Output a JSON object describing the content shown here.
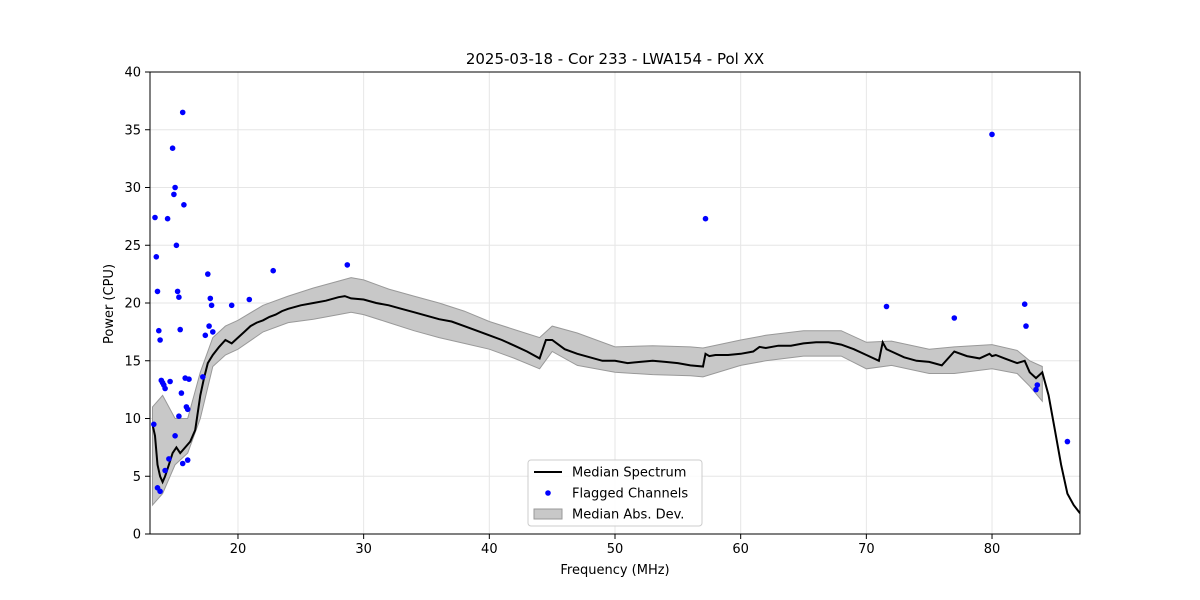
{
  "colors": {
    "median_line": "#000000",
    "flagged_points": "#0000ff",
    "mad_band_fill": "#c8c8c8",
    "mad_band_edge": "#999999",
    "grid": "#e6e6e6",
    "axes": "#000000",
    "background": "#ffffff"
  },
  "chart_data": {
    "type": "line",
    "title": "2025-03-18 - Cor 233 - LWA154 - Pol XX",
    "xlabel": "Frequency (MHz)",
    "ylabel": "Power (CPU)",
    "xlim": [
      13,
      87
    ],
    "ylim": [
      0,
      40
    ],
    "xticks": [
      20,
      30,
      40,
      50,
      60,
      70,
      80
    ],
    "yticks": [
      0,
      5,
      10,
      15,
      20,
      25,
      30,
      35,
      40
    ],
    "grid": true,
    "legend_location": "lower-center",
    "legend": [
      {
        "label": "Median Spectrum",
        "kind": "line"
      },
      {
        "label": "Flagged Channels",
        "kind": "marker"
      },
      {
        "label": "Median Abs. Dev.",
        "kind": "patch"
      }
    ],
    "series": [
      {
        "name": "Median Spectrum",
        "x": [
          13.2,
          13.4,
          13.6,
          13.8,
          14.0,
          14.2,
          14.5,
          14.8,
          15.1,
          15.4,
          15.8,
          16.2,
          16.6,
          17.0,
          17.3,
          17.6,
          18.0,
          18.5,
          19.0,
          19.5,
          20.0,
          20.5,
          21.0,
          21.5,
          22.0,
          22.5,
          23.0,
          23.5,
          24.0,
          25.0,
          26.0,
          27.0,
          28.0,
          28.5,
          29.0,
          30.0,
          31.0,
          32.0,
          33.0,
          34.0,
          35.0,
          36.0,
          37.0,
          38.0,
          39.0,
          40.0,
          41.0,
          42.0,
          43.0,
          44.0,
          44.5,
          45.0,
          46.0,
          47.0,
          48.0,
          49.0,
          50.0,
          51.0,
          52.0,
          53.0,
          54.0,
          55.0,
          56.0,
          57.0,
          57.2,
          57.5,
          58.0,
          59.0,
          60.0,
          61.0,
          61.5,
          62.0,
          63.0,
          64.0,
          65.0,
          66.0,
          67.0,
          68.0,
          69.0,
          70.0,
          71.0,
          71.3,
          71.6,
          72.0,
          73.0,
          74.0,
          75.0,
          76.0,
          77.0,
          78.0,
          79.0,
          79.8,
          80.0,
          80.3,
          81.0,
          82.0,
          82.6,
          83.0,
          83.5,
          84.0,
          84.5,
          85.0,
          85.5,
          86.0,
          86.5,
          87.0
        ],
        "values": [
          9.5,
          8.5,
          6.0,
          5.0,
          4.5,
          5.0,
          6.0,
          7.0,
          7.5,
          7.0,
          7.5,
          8.0,
          9.0,
          12.0,
          13.5,
          14.8,
          15.5,
          16.2,
          16.8,
          16.5,
          17.0,
          17.5,
          18.0,
          18.3,
          18.5,
          18.8,
          19.0,
          19.3,
          19.5,
          19.8,
          20.0,
          20.2,
          20.5,
          20.6,
          20.4,
          20.3,
          20.0,
          19.8,
          19.5,
          19.2,
          18.9,
          18.6,
          18.4,
          18.0,
          17.6,
          17.2,
          16.8,
          16.3,
          15.8,
          15.2,
          16.8,
          16.8,
          16.0,
          15.6,
          15.3,
          15.0,
          15.0,
          14.8,
          14.9,
          15.0,
          14.9,
          14.8,
          14.6,
          14.5,
          15.6,
          15.4,
          15.5,
          15.5,
          15.6,
          15.8,
          16.2,
          16.1,
          16.3,
          16.3,
          16.5,
          16.6,
          16.6,
          16.4,
          16.0,
          15.5,
          15.0,
          16.6,
          16.0,
          15.8,
          15.3,
          15.0,
          14.9,
          14.6,
          15.8,
          15.4,
          15.2,
          15.6,
          15.4,
          15.5,
          15.2,
          14.8,
          15.0,
          14.0,
          13.5,
          14.0,
          12.0,
          9.0,
          6.0,
          3.5,
          2.5,
          1.8
        ]
      },
      {
        "name": "Median Abs. Dev.",
        "x": [
          13.2,
          14.0,
          15.0,
          16.0,
          17.0,
          18.0,
          19.0,
          20.0,
          22.0,
          24.0,
          26.0,
          28.0,
          29.0,
          30.0,
          32.0,
          34.0,
          36.0,
          38.0,
          40.0,
          42.0,
          44.0,
          45.0,
          47.0,
          50.0,
          53.0,
          56.0,
          57.0,
          60.0,
          62.0,
          65.0,
          68.0,
          70.0,
          72.0,
          75.0,
          77.0,
          80.0,
          82.0,
          83.0,
          84.0
        ],
        "lower": [
          2.5,
          3.5,
          6.0,
          7.0,
          10.0,
          14.5,
          15.5,
          16.0,
          17.5,
          18.3,
          18.6,
          19.0,
          19.2,
          19.0,
          18.3,
          17.6,
          17.0,
          16.5,
          16.0,
          15.2,
          14.3,
          15.8,
          14.6,
          14.0,
          13.8,
          13.7,
          13.6,
          14.6,
          15.0,
          15.4,
          15.4,
          14.3,
          14.6,
          13.9,
          13.9,
          14.3,
          13.9,
          12.8,
          11.5
        ],
        "upper": [
          11.0,
          12.0,
          10.0,
          10.0,
          14.0,
          17.0,
          18.0,
          18.5,
          19.8,
          20.6,
          21.3,
          21.9,
          22.2,
          22.0,
          21.2,
          20.6,
          20.0,
          19.3,
          18.4,
          17.7,
          17.0,
          18.0,
          17.4,
          16.2,
          16.3,
          16.2,
          16.1,
          16.8,
          17.2,
          17.6,
          17.6,
          16.6,
          16.7,
          16.0,
          16.2,
          16.4,
          15.9,
          15.0,
          14.5
        ]
      },
      {
        "name": "Flagged Channels",
        "x": [
          13.3,
          13.4,
          13.5,
          13.6,
          13.7,
          13.8,
          13.9,
          14.0,
          14.1,
          14.2,
          14.4,
          14.6,
          14.8,
          14.9,
          15.0,
          15.1,
          15.2,
          15.3,
          15.4,
          15.5,
          15.6,
          15.7,
          15.8,
          15.9,
          16.0,
          16.1,
          13.6,
          13.8,
          14.2,
          14.5,
          15.0,
          15.3,
          15.6,
          16.0,
          17.2,
          17.4,
          17.6,
          17.7,
          17.8,
          17.9,
          18.0,
          19.5,
          20.9,
          22.8,
          28.7,
          57.2,
          71.6,
          77.0,
          80.0,
          82.6,
          82.7,
          83.5,
          83.6,
          86.0
        ],
        "values": [
          9.5,
          27.4,
          24.0,
          21.0,
          17.6,
          16.8,
          13.3,
          13.1,
          12.9,
          12.6,
          27.3,
          13.2,
          33.4,
          29.4,
          30.0,
          25.0,
          21.0,
          20.5,
          17.7,
          12.2,
          36.5,
          28.5,
          13.5,
          11.0,
          10.8,
          13.4,
          4.0,
          3.7,
          5.5,
          6.5,
          8.5,
          10.2,
          6.1,
          6.4,
          13.6,
          17.2,
          22.5,
          18.0,
          20.4,
          19.8,
          17.5,
          19.8,
          20.3,
          22.8,
          23.3,
          27.3,
          19.7,
          18.7,
          34.6,
          19.9,
          18.0,
          12.5,
          12.9,
          8.0
        ]
      }
    ]
  }
}
